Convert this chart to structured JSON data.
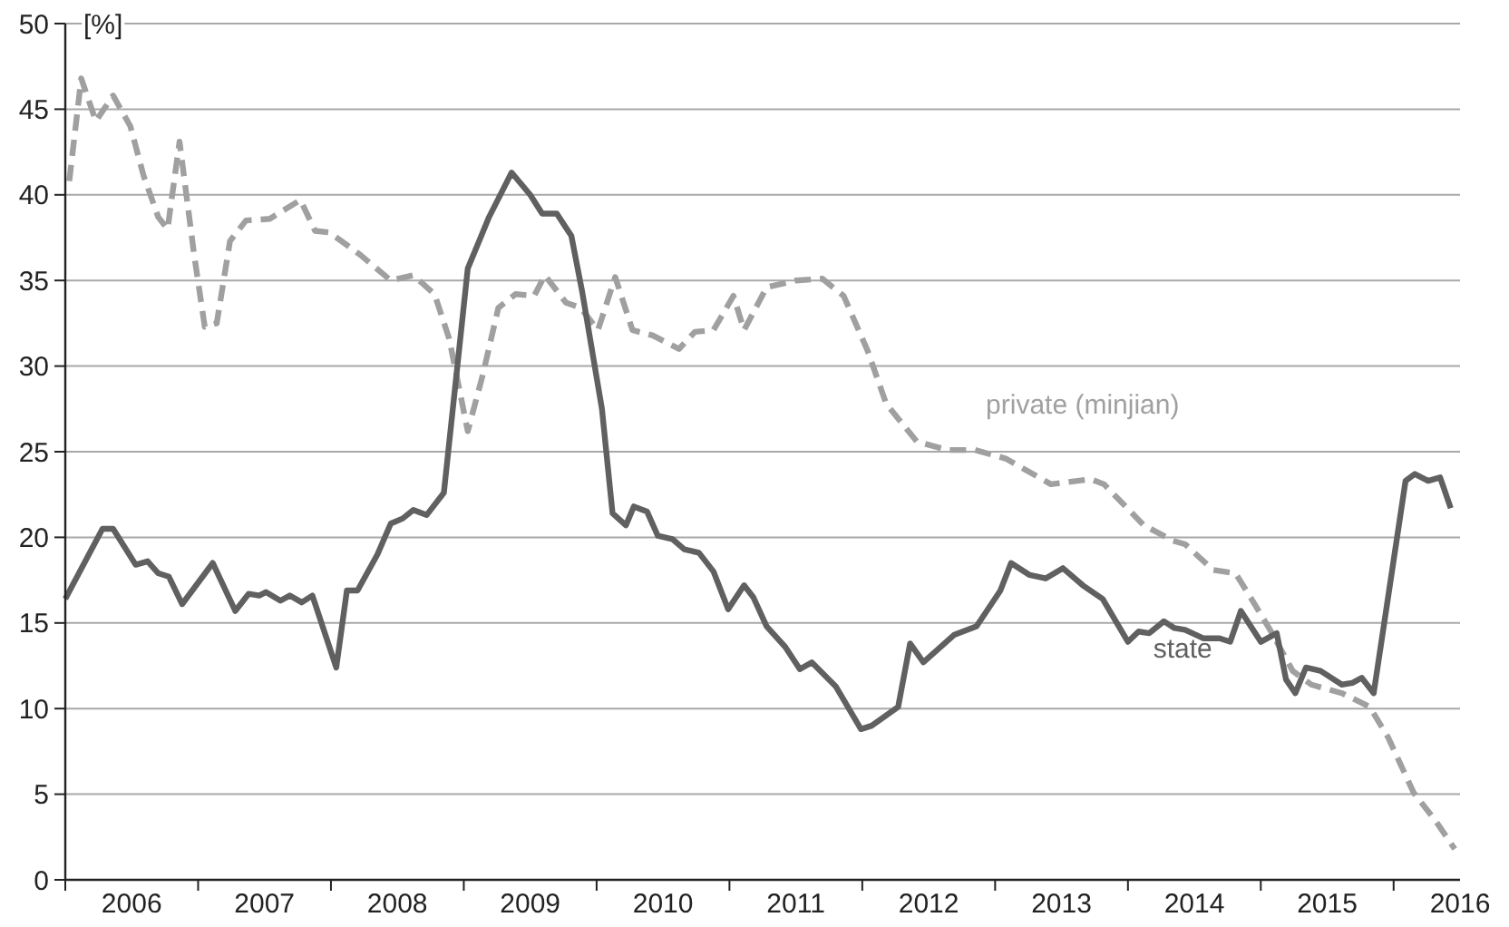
{
  "chart_data": {
    "type": "line",
    "ylabel": "[%]",
    "xlim": [
      2006,
      2016.5
    ],
    "xticks": [
      {
        "value": 2006,
        "label": null
      },
      {
        "value": 2006.5,
        "label": "2006"
      },
      {
        "value": 2007,
        "label": null
      },
      {
        "value": 2007.5,
        "label": "2007"
      },
      {
        "value": 2008,
        "label": null
      },
      {
        "value": 2008.5,
        "label": "2008"
      },
      {
        "value": 2009,
        "label": null
      },
      {
        "value": 2009.5,
        "label": "2009"
      },
      {
        "value": 2010,
        "label": null
      },
      {
        "value": 2010.5,
        "label": "2010"
      },
      {
        "value": 2011,
        "label": null
      },
      {
        "value": 2011.5,
        "label": "2011"
      },
      {
        "value": 2012,
        "label": null
      },
      {
        "value": 2012.5,
        "label": "2012"
      },
      {
        "value": 2013,
        "label": null
      },
      {
        "value": 2013.5,
        "label": "2013"
      },
      {
        "value": 2014,
        "label": null
      },
      {
        "value": 2014.5,
        "label": "2014"
      },
      {
        "value": 2015,
        "label": null
      },
      {
        "value": 2015.5,
        "label": "2015"
      },
      {
        "value": 2016,
        "label": null
      },
      {
        "value": 2016.5,
        "label": "2016"
      }
    ],
    "ylim": [
      0,
      50
    ],
    "yticks": [
      0,
      5,
      10,
      15,
      20,
      25,
      30,
      35,
      40,
      45,
      50
    ],
    "grid": "y",
    "legend": false,
    "marker": "none",
    "series": [
      {
        "name": "private (minjian)",
        "color": "#a0a0a0",
        "line_style": "dashed",
        "x": [
          2006.03,
          2006.12,
          2006.23,
          2006.36,
          2006.49,
          2006.59,
          2006.7,
          2006.77,
          2006.86,
          2006.97,
          2007.05,
          2007.14,
          2007.24,
          2007.36,
          2007.54,
          2007.77,
          2007.88,
          2007.99,
          2008.22,
          2008.45,
          2008.62,
          2008.78,
          2008.89,
          2009.03,
          2009.14,
          2009.26,
          2009.39,
          2009.53,
          2009.61,
          2009.77,
          2009.88,
          2010.01,
          2010.14,
          2010.27,
          2010.42,
          2010.62,
          2010.74,
          2010.88,
          2011.03,
          2011.11,
          2011.28,
          2011.5,
          2011.7,
          2011.86,
          2012.04,
          2012.18,
          2012.41,
          2012.64,
          2012.85,
          2013.08,
          2013.42,
          2013.72,
          2013.82,
          2014.12,
          2014.34,
          2014.43,
          2014.64,
          2014.81,
          2014.93,
          2015.07,
          2015.24,
          2015.38,
          2015.61,
          2015.82,
          2015.96,
          2016.15,
          2016.32,
          2016.46
        ],
        "values": [
          40.8,
          46.8,
          44.3,
          45.8,
          44.0,
          41.1,
          38.7,
          38.0,
          43.1,
          36.5,
          32.3,
          32.5,
          37.3,
          38.5,
          38.6,
          39.7,
          37.9,
          37.8,
          36.5,
          35.0,
          35.3,
          34.2,
          31.6,
          26.2,
          29.4,
          33.4,
          34.2,
          34.1,
          35.3,
          33.7,
          33.4,
          32.1,
          35.2,
          32.1,
          31.8,
          31.0,
          32.0,
          32.1,
          34.1,
          32.1,
          34.6,
          35.0,
          35.1,
          34.1,
          30.9,
          27.8,
          25.6,
          25.1,
          25.1,
          24.6,
          23.1,
          23.4,
          23.1,
          20.7,
          19.8,
          19.6,
          18.1,
          17.9,
          16.4,
          14.6,
          12.2,
          11.4,
          10.9,
          10.1,
          8.3,
          5.1,
          3.4,
          1.8
        ]
      },
      {
        "name": "state",
        "color": "#606060",
        "line_style": "solid",
        "x": [
          2006.0,
          2006.28,
          2006.36,
          2006.53,
          2006.62,
          2006.7,
          2006.78,
          2006.88,
          2007.11,
          2007.28,
          2007.38,
          2007.46,
          2007.51,
          2007.62,
          2007.69,
          2007.78,
          2007.86,
          2008.04,
          2008.12,
          2008.2,
          2008.35,
          2008.45,
          2008.54,
          2008.62,
          2008.72,
          2008.85,
          2009.03,
          2009.19,
          2009.36,
          2009.5,
          2009.59,
          2009.7,
          2009.81,
          2009.89,
          2010.04,
          2010.12,
          2010.22,
          2010.28,
          2010.38,
          2010.46,
          2010.57,
          2010.66,
          2010.77,
          2010.88,
          2010.99,
          2011.11,
          2011.18,
          2011.28,
          2011.42,
          2011.53,
          2011.62,
          2011.8,
          2011.99,
          2012.07,
          2012.27,
          2012.36,
          2012.46,
          2012.69,
          2012.86,
          2013.04,
          2013.12,
          2013.26,
          2013.38,
          2013.51,
          2013.66,
          2013.81,
          2014.0,
          2014.08,
          2014.16,
          2014.27,
          2014.35,
          2014.43,
          2014.57,
          2014.69,
          2014.77,
          2014.85,
          2015.0,
          2015.12,
          2015.19,
          2015.26,
          2015.34,
          2015.45,
          2015.61,
          2015.69,
          2015.76,
          2015.85,
          2016.09,
          2016.16,
          2016.26,
          2016.35,
          2016.43
        ],
        "values": [
          16.4,
          20.5,
          20.5,
          18.4,
          18.6,
          17.9,
          17.7,
          16.1,
          18.5,
          15.7,
          16.7,
          16.6,
          16.8,
          16.3,
          16.6,
          16.2,
          16.6,
          12.4,
          16.9,
          16.9,
          19.0,
          20.8,
          21.1,
          21.6,
          21.3,
          22.6,
          35.7,
          38.7,
          41.3,
          40.0,
          38.9,
          38.9,
          37.6,
          34.4,
          27.5,
          21.4,
          20.7,
          21.8,
          21.5,
          20.1,
          19.9,
          19.3,
          19.1,
          18.0,
          15.8,
          17.2,
          16.5,
          14.8,
          13.6,
          12.3,
          12.7,
          11.3,
          8.8,
          9.0,
          10.1,
          13.8,
          12.7,
          14.3,
          14.8,
          16.9,
          18.5,
          17.8,
          17.6,
          18.2,
          17.2,
          16.4,
          13.9,
          14.5,
          14.4,
          15.1,
          14.7,
          14.6,
          14.1,
          14.1,
          13.9,
          15.7,
          13.9,
          14.4,
          11.7,
          10.9,
          12.4,
          12.2,
          11.4,
          11.5,
          11.8,
          10.9,
          23.3,
          23.7,
          23.3,
          23.5,
          21.7
        ]
      }
    ]
  }
}
